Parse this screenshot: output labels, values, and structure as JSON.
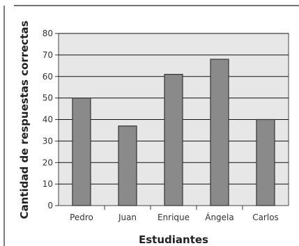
{
  "chart_data": {
    "type": "bar",
    "title": "",
    "xlabel": "Estudiantes",
    "ylabel": "Cantidad de respuestas correctas",
    "categories": [
      "Pedro",
      "Juan",
      "Enrique",
      "Ángela",
      "Carlos"
    ],
    "values": [
      50,
      37,
      61,
      68,
      40
    ],
    "ylim": [
      0,
      80
    ],
    "yticks": [
      0,
      10,
      20,
      30,
      40,
      50,
      60,
      70,
      80
    ],
    "grid": true,
    "colors": {
      "bar": "#8a8a8a",
      "plot_background": "#e7e7e7",
      "gridline": "#111111"
    }
  }
}
